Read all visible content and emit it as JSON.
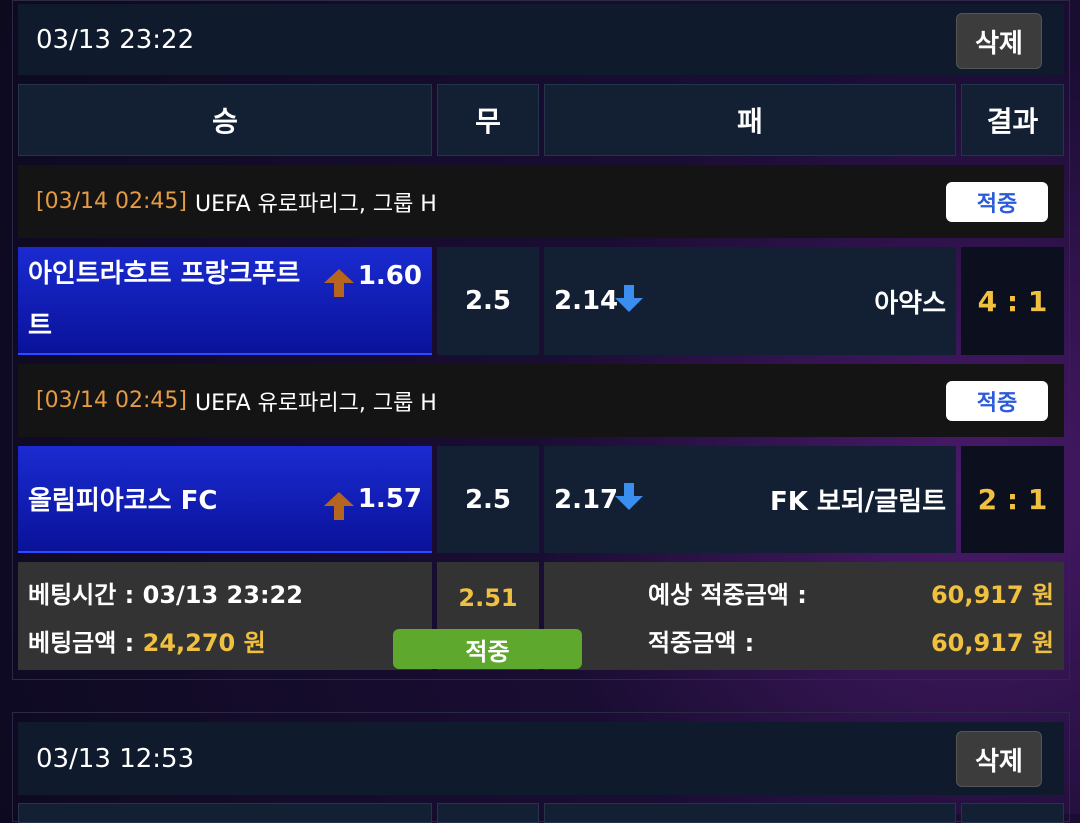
{
  "bets": [
    {
      "datetime": "03/13 23:22",
      "delete_label": "삭제",
      "columns": [
        "승",
        "무",
        "패",
        "결과"
      ],
      "matches": [
        {
          "league_time": "[03/14 02:45]",
          "league": "UEFA 유로파리그, 그룹 H",
          "status": "적중",
          "home": "아인트라흐트 프랑크푸르트",
          "home_odds": "1.60",
          "draw": "2.5",
          "away_odds": "2.14",
          "away": "아약스",
          "score": "4 : 1"
        },
        {
          "league_time": "[03/14 02:45]",
          "league": "UEFA 유로파리그, 그룹 H",
          "status": "적중",
          "home": "올림피아코스 FC",
          "home_odds": "1.57",
          "draw": "2.5",
          "away_odds": "2.17",
          "away": "FK 보되/글림트",
          "score": "2 : 1"
        }
      ],
      "summary": {
        "bet_time_label": "베팅시간 :",
        "bet_time": "03/13 23:22",
        "bet_amount_label": "베팅금액 :",
        "bet_amount": "24,270 원",
        "total_odds": "2.51",
        "result": "적중",
        "expected_label": "예상 적중금액 :",
        "expected": "60,917 원",
        "won_label": "적중금액 :",
        "won": "60,917 원"
      }
    },
    {
      "datetime": "03/13 12:53",
      "delete_label": "삭제"
    }
  ],
  "colors": {
    "win_bg": "#1a2bd0",
    "odds_up": "#b5651d",
    "odds_down": "#3a8ef0",
    "result_yellow": "#f0c040",
    "hit_green": "#5ea82e"
  }
}
